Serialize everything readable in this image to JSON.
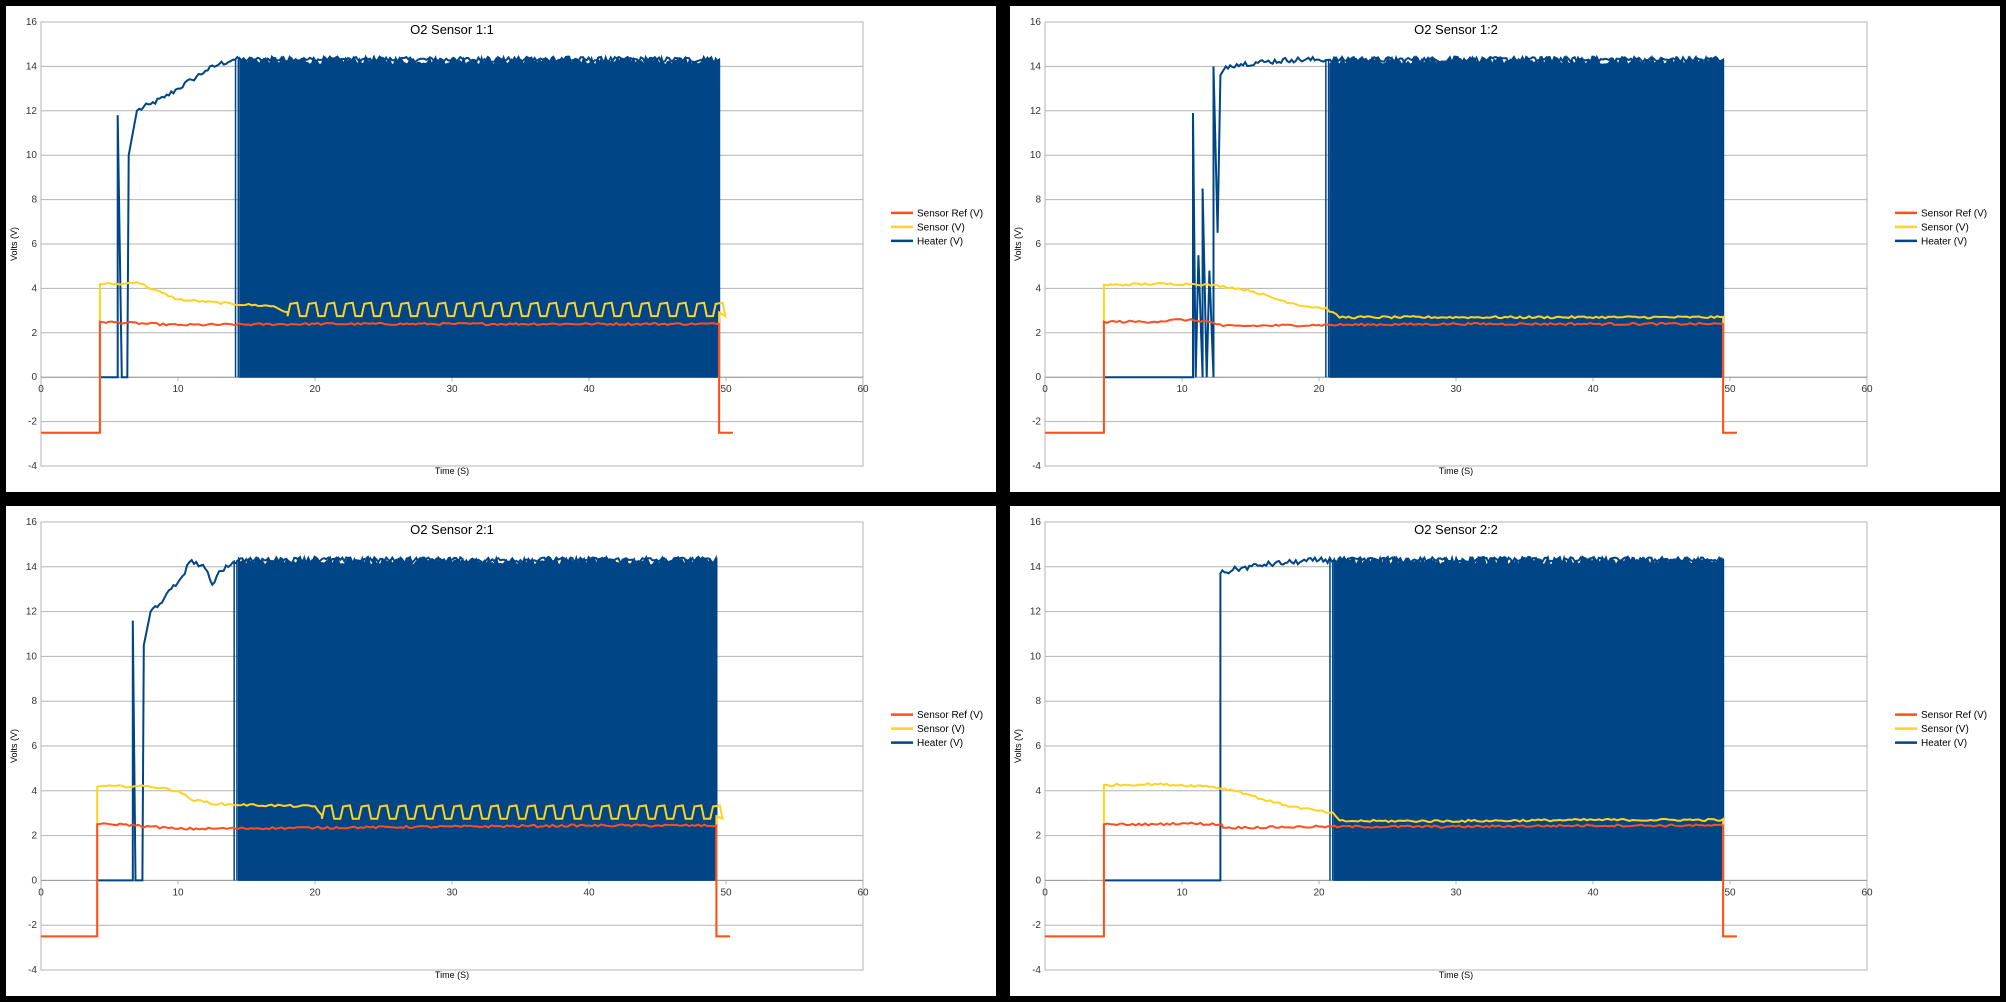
{
  "colors": {
    "sensor_ref": "#ff4e1f",
    "sensor": "#ffd320",
    "heater": "#004586",
    "grid": "#b3b3b3",
    "frame": "#000000"
  },
  "chart_data": [
    {
      "type": "line",
      "title": "O2 Sensor 1:1",
      "xlabel": "Time (S)",
      "ylabel": "Volts (V)",
      "xlim": [
        0,
        60
      ],
      "ylim": [
        -4,
        16
      ],
      "xticks": [
        "0",
        "10",
        "20",
        "30",
        "40",
        "50",
        "60"
      ],
      "yticks": [
        "-4",
        "-2",
        "0",
        "2",
        "4",
        "6",
        "8",
        "10",
        "12",
        "14",
        "16"
      ],
      "grid": true,
      "legend": "right",
      "sensor_osc": true,
      "pwm_start": 14.5,
      "series": [
        {
          "name": "Sensor Ref (V)",
          "x": [
            0,
            4.3,
            4.3,
            10,
            20,
            30,
            40,
            49.5,
            49.5,
            50.5
          ],
          "y": [
            -2.5,
            -2.5,
            2.5,
            2.35,
            2.4,
            2.4,
            2.4,
            2.4,
            -2.5,
            -2.5
          ]
        },
        {
          "name": "Sensor (V)",
          "x": [
            0,
            4.3,
            4.3,
            6,
            7,
            8,
            10,
            14,
            17,
            18,
            49.5,
            49.5,
            50.5
          ],
          "y": [
            -2.5,
            -2.5,
            4.2,
            4.2,
            4.3,
            4.0,
            3.5,
            3.3,
            3.2,
            2.9,
            2.9,
            -2.5,
            -2.5
          ]
        },
        {
          "name": "Heater (V)",
          "x": [
            4.3,
            5.6,
            5.6,
            5.9,
            6.0,
            6.3,
            6.4,
            7.0,
            8,
            9,
            10,
            11,
            12,
            13,
            14,
            14.5,
            49.5,
            49.5
          ],
          "y": [
            0,
            0,
            11.8,
            0,
            0,
            0,
            10.0,
            12.0,
            12.3,
            12.6,
            13.0,
            13.4,
            13.8,
            14.1,
            14.3,
            14.3,
            14.3,
            0
          ]
        }
      ]
    },
    {
      "type": "line",
      "title": "O2 Sensor 1:2",
      "xlabel": "Time (S)",
      "ylabel": "Volts (V)",
      "xlim": [
        0,
        60
      ],
      "ylim": [
        -4,
        16
      ],
      "xticks": [
        "0",
        "10",
        "20",
        "30",
        "40",
        "50",
        "60"
      ],
      "yticks": [
        "-4",
        "-2",
        "0",
        "2",
        "4",
        "6",
        "8",
        "10",
        "12",
        "14",
        "16"
      ],
      "grid": true,
      "legend": "right",
      "sensor_osc": false,
      "pwm_start": 20.8,
      "series": [
        {
          "name": "Sensor Ref (V)",
          "x": [
            0,
            4.3,
            4.3,
            8,
            10,
            12,
            13,
            20,
            30,
            40,
            49.5,
            49.5,
            50.5
          ],
          "y": [
            -2.5,
            -2.5,
            2.5,
            2.5,
            2.6,
            2.5,
            2.3,
            2.35,
            2.4,
            2.4,
            2.4,
            -2.5,
            -2.5
          ]
        },
        {
          "name": "Sensor (V)",
          "x": [
            0,
            4.3,
            4.3,
            8,
            11,
            13,
            15,
            17,
            19,
            20.5,
            21.5,
            30,
            40,
            49.5,
            49.5,
            50.5
          ],
          "y": [
            -2.5,
            -2.5,
            4.15,
            4.2,
            4.2,
            4.1,
            3.9,
            3.5,
            3.2,
            3.1,
            2.7,
            2.7,
            2.7,
            2.7,
            -2.5,
            -2.5
          ]
        },
        {
          "name": "Heater (V)",
          "x": [
            4.3,
            10.8,
            10.8,
            11.0,
            11.2,
            11.5,
            11.5,
            11.8,
            12.0,
            12.3,
            12.3,
            12.6,
            12.8,
            13.0,
            13.2,
            14,
            16,
            18,
            20,
            20.8,
            49.5,
            49.5
          ],
          "y": [
            0,
            0,
            11.9,
            0,
            5.5,
            0,
            8.5,
            0,
            4.8,
            0,
            14.0,
            6.5,
            13.6,
            13.8,
            14.0,
            14.1,
            14.2,
            14.3,
            14.3,
            14.3,
            14.3,
            0
          ]
        }
      ]
    },
    {
      "type": "line",
      "title": "O2 Sensor 2:1",
      "xlabel": "Time (S)",
      "ylabel": "Volts (V)",
      "xlim": [
        0,
        60
      ],
      "ylim": [
        -4,
        16
      ],
      "xticks": [
        "0",
        "10",
        "20",
        "30",
        "40",
        "50",
        "60"
      ],
      "yticks": [
        "-4",
        "-2",
        "0",
        "2",
        "4",
        "6",
        "8",
        "10",
        "12",
        "14",
        "16"
      ],
      "grid": true,
      "legend": "right",
      "sensor_osc": true,
      "pwm_start": 14.4,
      "series": [
        {
          "name": "Sensor Ref (V)",
          "x": [
            0,
            4.1,
            4.1,
            6,
            8,
            10,
            20,
            30,
            40,
            49.3,
            49.3,
            50.3
          ],
          "y": [
            -2.5,
            -2.5,
            2.5,
            2.5,
            2.4,
            2.3,
            2.35,
            2.4,
            2.45,
            2.45,
            -2.5,
            -2.5
          ]
        },
        {
          "name": "Sensor (V)",
          "x": [
            0,
            4.1,
            4.1,
            8,
            10,
            11,
            13,
            20,
            20.5,
            49.3,
            49.3,
            50.3
          ],
          "y": [
            -2.5,
            -2.5,
            4.2,
            4.2,
            4.0,
            3.6,
            3.4,
            3.3,
            2.9,
            2.9,
            -2.5,
            -2.5
          ]
        },
        {
          "name": "Heater (V)",
          "x": [
            4.1,
            6.7,
            6.7,
            6.9,
            7.0,
            7.4,
            7.5,
            8,
            9,
            10,
            11,
            12,
            12.5,
            13,
            14,
            14.4,
            49.3,
            49.3
          ],
          "y": [
            0,
            0,
            11.6,
            0,
            0,
            0,
            10.5,
            12.0,
            12.6,
            13.3,
            14.3,
            13.9,
            13.2,
            13.8,
            14.2,
            14.3,
            14.3,
            0
          ]
        }
      ]
    },
    {
      "type": "line",
      "title": "O2 Sensor 2:2",
      "xlabel": "Time (S)",
      "ylabel": "Volts (V)",
      "xlim": [
        0,
        60
      ],
      "ylim": [
        -4,
        16
      ],
      "xticks": [
        "0",
        "10",
        "20",
        "30",
        "40",
        "50",
        "60"
      ],
      "yticks": [
        "-4",
        "-2",
        "0",
        "2",
        "4",
        "6",
        "8",
        "10",
        "12",
        "14",
        "16"
      ],
      "grid": true,
      "legend": "right",
      "sensor_osc": false,
      "pwm_start": 21.1,
      "series": [
        {
          "name": "Sensor Ref (V)",
          "x": [
            0,
            4.3,
            4.3,
            8,
            10,
            12.9,
            13,
            20,
            30,
            40,
            49.5,
            49.5,
            50.5
          ],
          "y": [
            -2.5,
            -2.5,
            2.5,
            2.5,
            2.55,
            2.5,
            2.35,
            2.4,
            2.4,
            2.45,
            2.45,
            -2.5,
            -2.5
          ]
        },
        {
          "name": "Sensor (V)",
          "x": [
            0,
            4.3,
            4.3,
            8,
            12,
            14,
            16,
            18,
            20,
            21,
            21.5,
            30,
            40,
            49.5,
            49.5,
            50.5
          ],
          "y": [
            -2.5,
            -2.5,
            4.25,
            4.3,
            4.2,
            4.0,
            3.6,
            3.3,
            3.1,
            3.0,
            2.65,
            2.65,
            2.7,
            2.7,
            -2.5,
            -2.5
          ]
        },
        {
          "name": "Heater (V)",
          "x": [
            4.3,
            12.8,
            12.8,
            14,
            16,
            18,
            20,
            21.1,
            49.5,
            49.5
          ],
          "y": [
            0,
            0,
            13.7,
            13.9,
            14.1,
            14.2,
            14.3,
            14.3,
            14.3,
            0
          ]
        }
      ]
    }
  ]
}
